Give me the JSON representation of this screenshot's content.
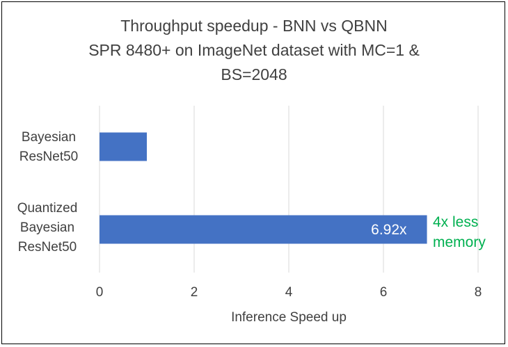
{
  "chart_data": {
    "type": "bar",
    "orientation": "horizontal",
    "title_lines": [
      "Throughput speedup - BNN vs QBNN",
      "SPR 8480+ on ImageNet dataset with MC=1 &",
      "BS=2048"
    ],
    "categories": [
      [
        "Bayesian",
        "ResNet50"
      ],
      [
        "Quantized",
        "Bayesian",
        "ResNet50"
      ]
    ],
    "values": [
      1,
      6.92
    ],
    "data_labels": [
      "",
      "6.92x"
    ],
    "xlabel": "Inference Speed up",
    "xlim": [
      0,
      8
    ],
    "xticks": [
      "0",
      "2",
      "4",
      "6",
      "8"
    ],
    "grid": true,
    "bar_color": "#4472c4",
    "annotation": {
      "lines": [
        "4x less",
        "memory"
      ],
      "color": "#00b050"
    }
  }
}
